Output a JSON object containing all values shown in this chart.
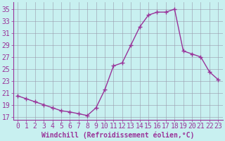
{
  "x": [
    0,
    1,
    2,
    3,
    4,
    5,
    6,
    7,
    8,
    9,
    10,
    11,
    12,
    13,
    14,
    15,
    16,
    17,
    18,
    19,
    20,
    21,
    22,
    23
  ],
  "y": [
    20.5,
    20.0,
    19.5,
    19.0,
    18.5,
    18.0,
    17.8,
    17.5,
    17.2,
    18.5,
    21.5,
    25.5,
    26.0,
    29.0,
    32.0,
    34.0,
    34.5,
    34.5,
    35.0,
    28.0,
    27.5,
    27.0,
    24.5,
    23.2
  ],
  "line_color": "#993399",
  "marker": "+",
  "marker_size": 4,
  "bg_color": "#c8f0f0",
  "grid_color": "#9999aa",
  "xlabel": "Windchill (Refroidissement éolien,°C)",
  "xlabel_fontsize": 7,
  "yticks": [
    17,
    19,
    21,
    23,
    25,
    27,
    29,
    31,
    33,
    35
  ],
  "xticks": [
    0,
    1,
    2,
    3,
    4,
    5,
    6,
    7,
    8,
    9,
    10,
    11,
    12,
    13,
    14,
    15,
    16,
    17,
    18,
    19,
    20,
    21,
    22,
    23
  ],
  "ylim": [
    16.5,
    36.2
  ],
  "xlim": [
    -0.5,
    23.5
  ],
  "tick_fontsize": 7,
  "tick_color": "#993399",
  "spine_color": "#993399",
  "lw": 1.0
}
